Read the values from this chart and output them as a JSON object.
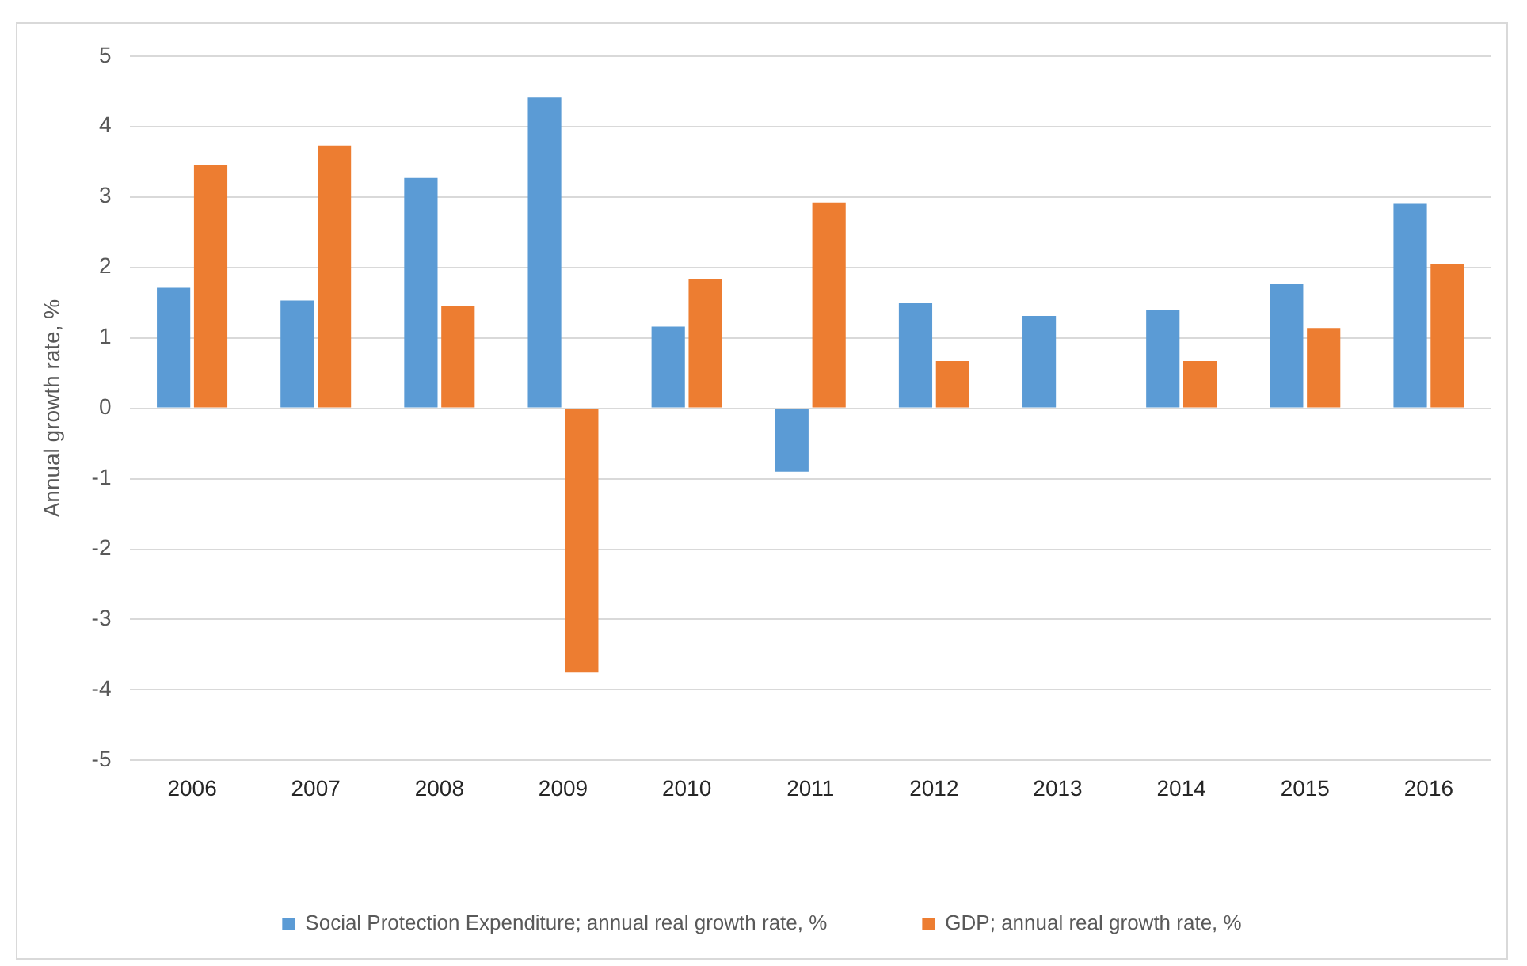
{
  "chart_data": {
    "type": "bar",
    "ylabel": "Annual growth rate, %",
    "categories": [
      "2006",
      "2007",
      "2008",
      "2009",
      "2010",
      "2011",
      "2012",
      "2013",
      "2014",
      "2015",
      "2016"
    ],
    "series": [
      {
        "name": "Social Protection Expenditure; annual real growth rate, %",
        "color": "#5b9bd5",
        "values": [
          1.71,
          1.53,
          3.27,
          4.41,
          1.16,
          -0.9,
          1.49,
          1.31,
          1.39,
          1.76,
          2.9
        ]
      },
      {
        "name": "GDP; annual real growth rate, %",
        "color": "#ed7d31",
        "values": [
          3.45,
          3.73,
          1.45,
          -3.75,
          1.84,
          2.92,
          0.67,
          0,
          0.67,
          1.14,
          2.04
        ]
      }
    ],
    "ylim": [
      -5,
      5
    ],
    "yticks": [
      -5,
      -4,
      -3,
      -2,
      -1,
      0,
      1,
      2,
      3,
      4,
      5
    ],
    "grid": "y",
    "legend": "bottom"
  }
}
